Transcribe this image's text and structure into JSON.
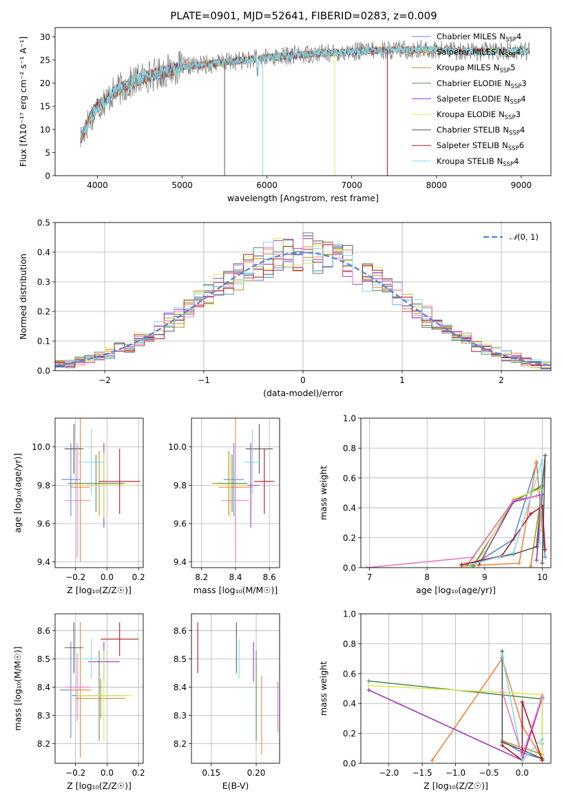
{
  "figure": {
    "title": "PLATE=0901, MJD=52641, FIBERID=0283, z=0.009"
  },
  "model_colors": {
    "Chabrier MILES": "#5a86d1",
    "Salpeter MILES": "#f0833a",
    "Kroupa MILES": "#c48a1f",
    "Chabrier ELODIE": "#4f8a5a",
    "Salpeter ELODIE": "#9b34b5",
    "Kroupa ELODIE": "#d9e84c",
    "Chabrier STELIB": "#555555",
    "Salpeter STELIB": "#b0141e",
    "Kroupa STELIB": "#7fd9e6",
    "extra_pink": "#e377c2"
  },
  "chart_data": [
    {
      "id": "spectrum",
      "type": "line",
      "xlabel": "wavelength [Angstrom, rest frame]",
      "ylabel": "Flux [fλ10⁻¹⁷ erg cm⁻² s⁻¹ A⁻¹]",
      "xlim": [
        3500,
        9350
      ],
      "ylim": [
        0,
        32
      ],
      "xticks": [
        4000,
        5000,
        6000,
        7000,
        8000,
        9000
      ],
      "yticks": [
        0,
        5,
        10,
        15,
        20,
        25,
        30
      ],
      "grid": false,
      "legend_position": "top-right",
      "continuum": {
        "x": [
          3800,
          3900,
          4000,
          4200,
          4500,
          5000,
          5500,
          6000,
          6500,
          7000,
          7500,
          8000,
          8500,
          9000,
          9100
        ],
        "y": [
          8,
          12,
          15,
          18,
          21,
          23.5,
          24.5,
          25.5,
          26.3,
          26.8,
          27.2,
          27.2,
          26.8,
          27.0,
          26.8
        ]
      },
      "series": [
        {
          "name": "Chabrier MILES",
          "nssp": "4"
        },
        {
          "name": "Salpeter MILES",
          "nssp": "4"
        },
        {
          "name": "Kroupa MILES",
          "nssp": "5"
        },
        {
          "name": "Chabrier ELODIE",
          "nssp": "3"
        },
        {
          "name": "Salpeter ELODIE",
          "nssp": "4"
        },
        {
          "name": "Kroupa ELODIE",
          "nssp": "3"
        },
        {
          "name": "Chabrier STELIB",
          "nssp": "4"
        },
        {
          "name": "Salpeter STELIB",
          "nssp": "6"
        },
        {
          "name": "Kroupa STELIB",
          "nssp": "4"
        }
      ],
      "legend_suffix": "N",
      "legend_sub": "SSP"
    },
    {
      "id": "residuals",
      "type": "histogram",
      "xlabel": "(data-model)/error",
      "ylabel": "Normed distribution",
      "xlim": [
        -2.5,
        2.5
      ],
      "ylim": [
        0,
        0.5
      ],
      "xticks": [
        -2,
        -1,
        0,
        1,
        2
      ],
      "xticklabels": [
        "−2",
        "−1",
        "0",
        "1",
        "2"
      ],
      "yticks": [
        0.0,
        0.1,
        0.2,
        0.3,
        0.4,
        0.5
      ],
      "grid": true,
      "legend_position": "top-right",
      "reference_curve": {
        "name": "N(0, 1)",
        "label_main": "𝒩",
        "label_args": "(0, 1)",
        "mean": 0,
        "sigma": 1
      },
      "bin_width": 0.1
    },
    {
      "id": "age_vs_Z",
      "type": "errorbar",
      "xlabel": "Z [log₁₀(Z/Z☉)]",
      "ylabel": "age  [log₁₀(age/yr)]",
      "xlim": [
        -0.33,
        0.23
      ],
      "ylim": [
        9.37,
        10.15
      ],
      "xticks": [
        -0.2,
        0.0,
        0.2
      ],
      "xticklabels": [
        "−0.2",
        "0.0",
        "0.2"
      ],
      "yticks": [
        9.4,
        9.6,
        9.8,
        10.0
      ],
      "grid": true,
      "points": [
        {
          "color": "Chabrier MILES",
          "x": -0.23,
          "xerr": 0.06,
          "y": 9.83,
          "yerr": 0.19
        },
        {
          "color": "Salpeter MILES",
          "x": -0.17,
          "xerr": 0.06,
          "y": 9.79,
          "yerr": 0.39
        },
        {
          "color": "Kroupa MILES",
          "x": -0.05,
          "xerr": 0.16,
          "y": 9.81,
          "yerr": 0.17
        },
        {
          "color": "Chabrier ELODIE",
          "x": -0.07,
          "xerr": 0.18,
          "y": 9.81,
          "yerr": 0.15
        },
        {
          "color": "Salpeter ELODIE",
          "x": -0.02,
          "xerr": 0.11,
          "y": 9.8,
          "yerr": 0.22
        },
        {
          "color": "Kroupa ELODIE",
          "x": -0.02,
          "xerr": 0.19,
          "y": 9.8,
          "yerr": 0.17
        },
        {
          "color": "Chabrier STELIB",
          "x": -0.21,
          "xerr": 0.06,
          "y": 9.99,
          "yerr": 0.13
        },
        {
          "color": "Salpeter STELIB",
          "x": 0.08,
          "xerr": 0.13,
          "y": 9.82,
          "yerr": 0.17
        },
        {
          "color": "Kroupa STELIB",
          "x": -0.1,
          "xerr": 0.08,
          "y": 9.92,
          "yerr": 0.17
        },
        {
          "color": "extra_pink",
          "x": -0.19,
          "xerr": 0.08,
          "y": 9.72,
          "yerr": 0.3
        }
      ]
    },
    {
      "id": "age_vs_mass",
      "type": "errorbar",
      "xlabel": "mass [log₁₀(M/M☉)]",
      "ylabel": "",
      "xlim": [
        8.14,
        8.66
      ],
      "ylim": [
        9.37,
        10.15
      ],
      "xticks": [
        8.2,
        8.4,
        8.6
      ],
      "xticklabels": [
        "8.2",
        "8.4",
        "8.6"
      ],
      "yticks": [
        9.4,
        9.6,
        9.8,
        10.0
      ],
      "grid": true,
      "points": [
        {
          "color": "Chabrier MILES",
          "x": 8.39,
          "xerr": 0.06,
          "y": 9.83,
          "yerr": 0.19
        },
        {
          "color": "Salpeter MILES",
          "x": 8.4,
          "xerr": 0.1,
          "y": 9.79,
          "yerr": 0.39
        },
        {
          "color": "Kroupa MILES",
          "x": 8.36,
          "xerr": 0.1,
          "y": 9.81,
          "yerr": 0.17
        },
        {
          "color": "Chabrier ELODIE",
          "x": 8.38,
          "xerr": 0.09,
          "y": 9.81,
          "yerr": 0.15
        },
        {
          "color": "Salpeter ELODIE",
          "x": 8.49,
          "xerr": 0.05,
          "y": 9.8,
          "yerr": 0.22
        },
        {
          "color": "Kroupa ELODIE",
          "x": 8.37,
          "xerr": 0.1,
          "y": 9.8,
          "yerr": 0.17
        },
        {
          "color": "Chabrier STELIB",
          "x": 8.54,
          "xerr": 0.08,
          "y": 9.99,
          "yerr": 0.13
        },
        {
          "color": "Salpeter STELIB",
          "x": 8.57,
          "xerr": 0.06,
          "y": 9.82,
          "yerr": 0.17
        },
        {
          "color": "Kroupa STELIB",
          "x": 8.5,
          "xerr": 0.05,
          "y": 9.92,
          "yerr": 0.17
        },
        {
          "color": "extra_pink",
          "x": 8.4,
          "xerr": 0.08,
          "y": 9.72,
          "yerr": 0.3
        }
      ]
    },
    {
      "id": "mass_weight_vs_age",
      "type": "line",
      "xlabel": "age  [log₁₀(age/yr)]",
      "ylabel": "mass weight",
      "xlim": [
        6.85,
        10.15
      ],
      "ylim": [
        0,
        1
      ],
      "xticks": [
        7,
        8,
        9,
        10
      ],
      "yticks": [
        0.0,
        0.2,
        0.4,
        0.6,
        0.8,
        1.0
      ],
      "grid": true,
      "series": [
        {
          "color": "Chabrier MILES",
          "x": [
            8.8,
            9.5,
            9.9,
            10.05
          ],
          "y": [
            0.02,
            0.19,
            0.7,
            0.07
          ]
        },
        {
          "color": "Salpeter MILES",
          "x": [
            8.6,
            9.6,
            9.9,
            10.0
          ],
          "y": [
            0.01,
            0.03,
            0.71,
            0.25
          ]
        },
        {
          "color": "Kroupa MILES",
          "x": [
            8.7,
            9.5,
            10.0,
            9.8
          ],
          "y": [
            0.02,
            0.45,
            0.54,
            0.01
          ]
        },
        {
          "color": "Chabrier ELODIE",
          "x": [
            8.8,
            9.5,
            10.0
          ],
          "y": [
            0.01,
            0.44,
            0.55
          ]
        },
        {
          "color": "Salpeter ELODIE",
          "x": [
            8.9,
            9.5,
            10.0,
            9.9
          ],
          "y": [
            0.02,
            0.44,
            0.49,
            0.05
          ]
        },
        {
          "color": "Kroupa ELODIE",
          "x": [
            8.85,
            9.5,
            10.0
          ],
          "y": [
            0.02,
            0.46,
            0.53
          ]
        },
        {
          "color": "Chabrier STELIB",
          "x": [
            8.6,
            9.5,
            9.9,
            10.05,
            10.0
          ],
          "y": [
            0.02,
            0.09,
            0.14,
            0.75,
            0.03
          ]
        },
        {
          "color": "Salpeter STELIB",
          "x": [
            8.6,
            9.3,
            9.8,
            10.0,
            10.05
          ],
          "y": [
            0.02,
            0.08,
            0.36,
            0.41,
            0.12
          ]
        },
        {
          "color": "Kroupa STELIB",
          "x": [
            8.75,
            9.5,
            10.0,
            9.95
          ],
          "y": [
            0.02,
            0.1,
            0.72,
            0.16
          ]
        },
        {
          "color": "extra_pink",
          "x": [
            6.95,
            8.8,
            9.5,
            9.9
          ],
          "y": [
            0.0,
            0.07,
            0.45,
            0.48
          ]
        }
      ]
    },
    {
      "id": "mass_vs_Z",
      "type": "errorbar",
      "xlabel": "Z [log₁₀(Z/Z☉)]",
      "ylabel": "mass [log₁₀(M/M☉)]",
      "xlim": [
        -0.33,
        0.23
      ],
      "ylim": [
        8.13,
        8.66
      ],
      "xticks": [
        -0.2,
        0.0,
        0.2
      ],
      "xticklabels": [
        "−0.2",
        "0.0",
        "0.2"
      ],
      "yticks": [
        8.2,
        8.3,
        8.4,
        8.5,
        8.6
      ],
      "grid": true,
      "points": [
        {
          "color": "Chabrier MILES",
          "x": -0.23,
          "xerr": 0.07,
          "y": 8.39,
          "yerr": 0.17
        },
        {
          "color": "Salpeter MILES",
          "x": -0.17,
          "xerr": 0.07,
          "y": 8.39,
          "yerr": 0.24
        },
        {
          "color": "Kroupa MILES",
          "x": -0.04,
          "xerr": 0.16,
          "y": 8.36,
          "yerr": 0.07
        },
        {
          "color": "Chabrier ELODIE",
          "x": -0.05,
          "xerr": 0.17,
          "y": 8.37,
          "yerr": 0.16
        },
        {
          "color": "Salpeter ELODIE",
          "x": -0.02,
          "xerr": 0.1,
          "y": 8.49,
          "yerr": 0.07
        },
        {
          "color": "Kroupa ELODIE",
          "x": -0.02,
          "xerr": 0.18,
          "y": 8.37,
          "yerr": 0.16
        },
        {
          "color": "Chabrier STELIB",
          "x": -0.21,
          "xerr": 0.06,
          "y": 8.54,
          "yerr": 0.09
        },
        {
          "color": "Salpeter STELIB",
          "x": 0.08,
          "xerr": 0.12,
          "y": 8.57,
          "yerr": 0.06
        },
        {
          "color": "Kroupa STELIB",
          "x": -0.1,
          "xerr": 0.09,
          "y": 8.5,
          "yerr": 0.07
        },
        {
          "color": "extra_pink",
          "x": -0.19,
          "xerr": 0.08,
          "y": 8.4,
          "yerr": 0.12
        }
      ]
    },
    {
      "id": "mass_vs_ebv",
      "type": "errorbar",
      "xlabel": "E(B-V)",
      "ylabel": "",
      "xlim": [
        0.128,
        0.226
      ],
      "ylim": [
        8.13,
        8.66
      ],
      "xticks": [
        0.15,
        0.2
      ],
      "xticklabels": [
        "0.15",
        "0.20"
      ],
      "yticks": [
        8.2,
        8.3,
        8.4,
        8.5,
        8.6
      ],
      "grid": true,
      "points": [
        {
          "color": "Salpeter STELIB",
          "x": 0.135,
          "xerr": 0,
          "y": 8.54,
          "yerr": 0.09
        },
        {
          "color": "Chabrier STELIB",
          "x": 0.178,
          "xerr": 0,
          "y": 8.54,
          "yerr": 0.09
        },
        {
          "color": "Kroupa STELIB",
          "x": 0.181,
          "xerr": 0,
          "y": 8.5,
          "yerr": 0.07
        },
        {
          "color": "Salpeter ELODIE",
          "x": 0.197,
          "xerr": 0,
          "y": 8.49,
          "yerr": 0.07
        },
        {
          "color": "Kroupa ELODIE",
          "x": 0.2,
          "xerr": 0,
          "y": 8.37,
          "yerr": 0.16
        },
        {
          "color": "Chabrier ELODIE",
          "x": 0.2,
          "xerr": 0,
          "y": 8.37,
          "yerr": 0.16
        },
        {
          "color": "Salpeter MILES",
          "x": 0.206,
          "xerr": 0,
          "y": 8.3,
          "yerr": 0.14
        },
        {
          "color": "extra_pink",
          "x": 0.224,
          "xerr": 0,
          "y": 8.33,
          "yerr": 0.09
        }
      ]
    },
    {
      "id": "mass_weight_vs_Z",
      "type": "line",
      "xlabel": "Z [log₁₀(Z/Z☉)]",
      "ylabel": "mass weight",
      "xlim": [
        -2.42,
        0.43
      ],
      "ylim": [
        0,
        1
      ],
      "xticks": [
        -2.0,
        -1.5,
        -1.0,
        -0.5,
        0.0
      ],
      "xticklabels": [
        "−2.0",
        "−1.5",
        "−1.0",
        "−0.5",
        "0.0"
      ],
      "yticks": [
        0.0,
        0.2,
        0.4,
        0.6,
        0.8,
        1.0
      ],
      "grid": true,
      "series": [
        {
          "color": "Chabrier MILES",
          "x": [
            -0.3,
            -0.3,
            0.0,
            0.3,
            0.3
          ],
          "y": [
            0.71,
            0.15,
            0.07,
            0.03,
            0.13
          ]
        },
        {
          "color": "Salpeter MILES",
          "x": [
            -1.35,
            -0.3,
            0.0,
            0.3
          ],
          "y": [
            0.02,
            0.7,
            0.25,
            0.03
          ]
        },
        {
          "color": "Kroupa MILES",
          "x": [
            -0.3,
            0.3,
            0.3
          ],
          "y": [
            0.15,
            0.06,
            0.03
          ]
        },
        {
          "color": "Chabrier ELODIE",
          "x": [
            -2.3,
            0.3,
            0.3
          ],
          "y": [
            0.55,
            0.43,
            0.02
          ]
        },
        {
          "color": "Salpeter ELODIE",
          "x": [
            -2.3,
            0.0,
            0.3
          ],
          "y": [
            0.49,
            0.02,
            0.44
          ]
        },
        {
          "color": "Kroupa ELODIE",
          "x": [
            -2.3,
            0.3,
            0.3
          ],
          "y": [
            0.52,
            0.46,
            0.02
          ]
        },
        {
          "color": "Chabrier STELIB",
          "x": [
            -0.3,
            -0.3,
            0.0,
            0.3
          ],
          "y": [
            0.75,
            0.14,
            0.09,
            0.03
          ]
        },
        {
          "color": "Salpeter STELIB",
          "x": [
            -0.3,
            0.0,
            0.0,
            0.3
          ],
          "y": [
            0.12,
            0.02,
            0.41,
            0.02
          ]
        },
        {
          "color": "Kroupa STELIB",
          "x": [
            -0.3,
            0.0,
            0.3
          ],
          "y": [
            0.72,
            0.02,
            0.16
          ]
        },
        {
          "color": "extra_pink",
          "x": [
            -0.3,
            0.0,
            0.3
          ],
          "y": [
            0.48,
            0.05,
            0.45
          ]
        }
      ]
    }
  ]
}
